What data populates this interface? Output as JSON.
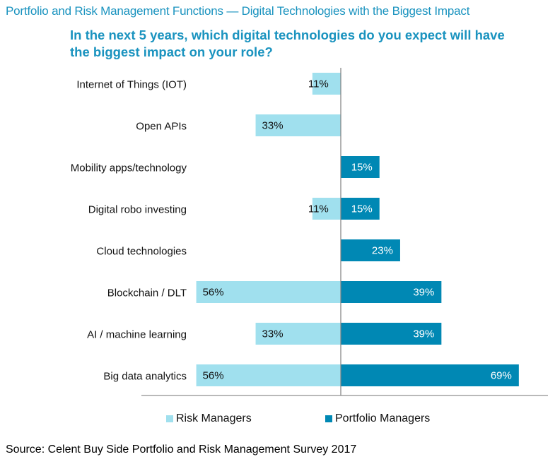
{
  "chart_data": {
    "type": "bar",
    "orientation": "horizontal-diverging",
    "title": "Portfolio and Risk Management Functions — Digital Technologies with the Biggest Impact",
    "subtitle": "In the next 5 years, which digital technologies do you expect will have the biggest impact on your role?",
    "categories": [
      "Internet of Things (IOT)",
      "Open APIs",
      "Mobility apps/technology",
      "Digital robo investing",
      "Cloud technologies",
      "Blockchain / DLT",
      "AI / machine learning",
      "Big data analytics"
    ],
    "series": [
      {
        "name": "Risk Managers",
        "color": "#a0e0ee",
        "label_color": "#111111",
        "side": "left",
        "values": [
          11,
          33,
          null,
          11,
          null,
          56,
          33,
          56
        ]
      },
      {
        "name": "Portfolio Managers",
        "color": "#0088b4",
        "label_color": "#ffffff",
        "side": "right",
        "values": [
          null,
          null,
          15,
          15,
          23,
          39,
          39,
          69
        ]
      }
    ],
    "value_suffix": "%",
    "xlabel": "",
    "ylabel": "",
    "xlim": [
      -56,
      69
    ],
    "grid": false,
    "legend": "bottom"
  },
  "source": "Source: Celent Buy Side Portfolio and Risk Management Survey 2017"
}
